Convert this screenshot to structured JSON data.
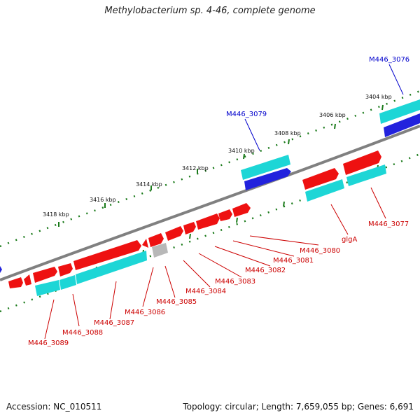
{
  "title": "Methylobacterium sp. 4-46, complete genome",
  "accession": "Accession: NC_010511",
  "summary": "Topology: circular; Length: 7,659,055 bp; Genes: 6,691",
  "colors": {
    "backbone": "#808080",
    "forward_cds": "#ee1111",
    "reverse_cds": "#1dd6d6",
    "rna": "#2222dd",
    "pseudo": "#b8b8b8",
    "tick": "#1a7a1a",
    "forward_label": "#cc0000",
    "reverse_label": "#0000cc"
  },
  "ticks": [
    {
      "label": "3404 kbp"
    },
    {
      "label": "3406 kbp"
    },
    {
      "label": "3408 kbp"
    },
    {
      "label": "3410 kbp"
    },
    {
      "label": "3412 kbp"
    },
    {
      "label": "3414 kbp"
    },
    {
      "label": "3416 kbp"
    },
    {
      "label": "3418 kbp"
    }
  ],
  "gene_labels": [
    {
      "text": "M446_3076",
      "strand": "reverse"
    },
    {
      "text": "M446_3079",
      "strand": "reverse"
    },
    {
      "text": "M446_3077",
      "strand": "forward"
    },
    {
      "text": "glgA",
      "strand": "forward"
    },
    {
      "text": "M446_3080",
      "strand": "forward"
    },
    {
      "text": "M446_3081",
      "strand": "forward"
    },
    {
      "text": "M446_3082",
      "strand": "forward"
    },
    {
      "text": "M446_3083",
      "strand": "forward"
    },
    {
      "text": "M446_3084",
      "strand": "forward"
    },
    {
      "text": "M446_3085",
      "strand": "forward"
    },
    {
      "text": "M446_3086",
      "strand": "forward"
    },
    {
      "text": "M446_3087",
      "strand": "forward"
    },
    {
      "text": "M446_3088",
      "strand": "forward"
    },
    {
      "text": "M446_3089",
      "strand": "forward"
    }
  ]
}
